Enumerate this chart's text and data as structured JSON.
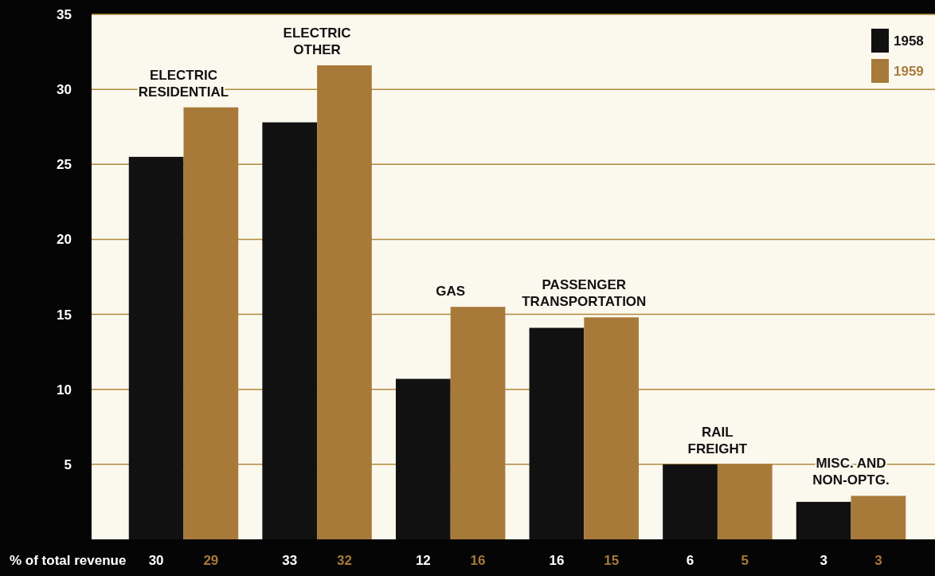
{
  "chart_data": {
    "type": "bar",
    "categories": [
      "ELECTRIC RESIDENTIAL",
      "ELECTRIC OTHER",
      "GAS",
      "PASSENGER TRANSPORTATION",
      "RAIL FREIGHT",
      "MISC. AND NON-OPTG."
    ],
    "series": [
      {
        "name": "1958",
        "color": "#111111",
        "values": [
          25.5,
          27.8,
          10.7,
          14.1,
          5.0,
          2.5
        ]
      },
      {
        "name": "1959",
        "color": "#a87a3a",
        "values": [
          28.8,
          31.6,
          15.5,
          14.8,
          5.0,
          2.9
        ]
      }
    ],
    "ylim": [
      0,
      35
    ],
    "yticks": [
      5,
      10,
      15,
      20,
      25,
      30,
      35
    ],
    "grid": "y",
    "legend": "top right",
    "annotations": [
      "% of total revenue",
      "30",
      "29",
      "33",
      "32",
      "12",
      "16",
      "16",
      "15",
      "6",
      "5",
      "3",
      "3"
    ]
  }
}
